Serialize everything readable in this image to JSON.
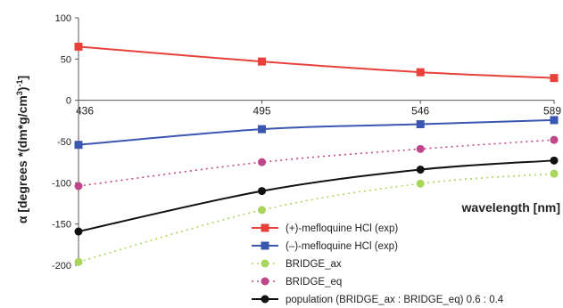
{
  "chart_data": {
    "type": "line",
    "xlabel": "wavelength [nm]",
    "ylabel_prefix": "α [degrees *(dm*g/cm",
    "ylabel_sup": "3",
    "ylabel_mid": ")",
    "ylabel_sup2": "-1",
    "ylabel_end": "]",
    "categories": [
      "436",
      "495",
      "546",
      "589"
    ],
    "x": [
      436,
      495,
      546,
      589
    ],
    "ylim": [
      -200,
      100
    ],
    "yticks": [
      "100",
      "50",
      "0",
      "-50",
      "-100",
      "-150",
      "-200"
    ],
    "grid": false,
    "legend_position": "bottom-right",
    "series": [
      {
        "name": "(+)-mefloquine HCl (exp)",
        "values": [
          65,
          47,
          34,
          27
        ],
        "color": "#e8413a",
        "dash": false,
        "marker": "square"
      },
      {
        "name": "(–)-mefloquine HCl (exp)",
        "values": [
          -54,
          -35,
          -29,
          -24
        ],
        "color": "#3a56b0",
        "dash": false,
        "marker": "square"
      },
      {
        "name": "BRIDGE_ax",
        "values": [
          -196,
          -133,
          -101,
          -89
        ],
        "color": "#a8d65a",
        "dash": true,
        "marker": "circle"
      },
      {
        "name": "BRIDGE_eq",
        "values": [
          -104,
          -75,
          -59,
          -48
        ],
        "color": "#c0468a",
        "dash": true,
        "marker": "circle"
      },
      {
        "name": "population (BRIDGE_ax : BRIDGE_eq) 0.6 : 0.4",
        "values": [
          -159,
          -110,
          -84,
          -73
        ],
        "color": "#111111",
        "dash": false,
        "marker": "circle"
      }
    ]
  }
}
